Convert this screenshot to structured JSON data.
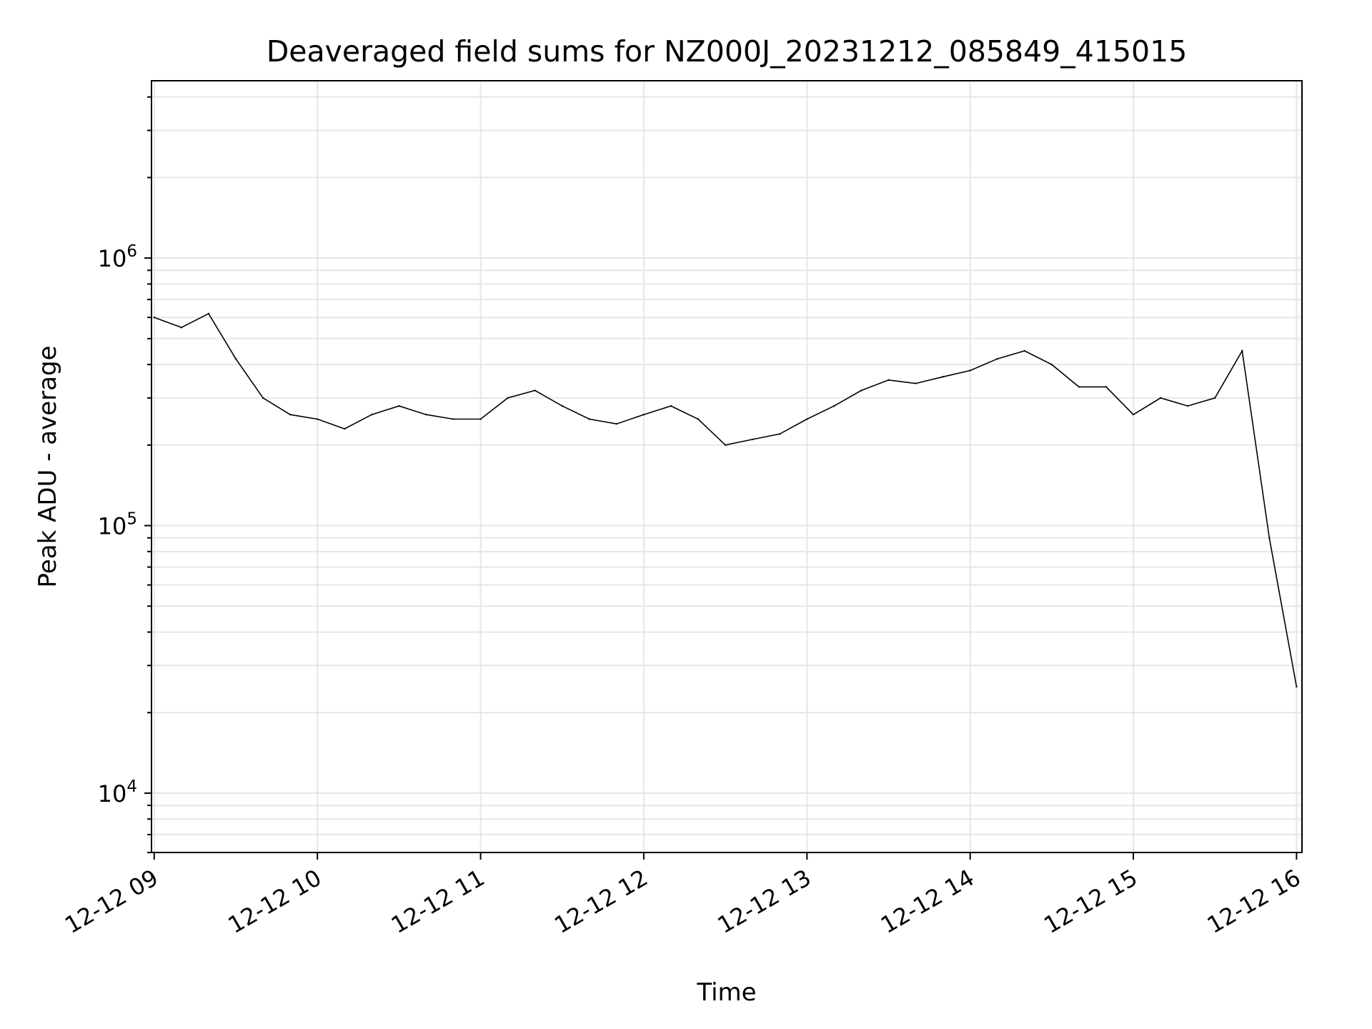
{
  "chart_data": {
    "type": "line",
    "title": "Deaveraged field sums for NZ000J_20231212_085849_415015",
    "xlabel": "Time",
    "ylabel": "Peak ADU - average",
    "yscale": "log",
    "ylim": [
      6000,
      4600000
    ],
    "xlim": [
      "2023-12-12 08:59",
      "2023-12-12 16:02"
    ],
    "x_ticks": [
      {
        "t": "2023-12-12 09:00",
        "label": "12-12 09"
      },
      {
        "t": "2023-12-12 10:00",
        "label": "12-12 10"
      },
      {
        "t": "2023-12-12 11:00",
        "label": "12-12 11"
      },
      {
        "t": "2023-12-12 12:00",
        "label": "12-12 12"
      },
      {
        "t": "2023-12-12 13:00",
        "label": "12-12 13"
      },
      {
        "t": "2023-12-12 14:00",
        "label": "12-12 14"
      },
      {
        "t": "2023-12-12 15:00",
        "label": "12-12 15"
      },
      {
        "t": "2023-12-12 16:00",
        "label": "12-12 16"
      }
    ],
    "y_ticks": [
      {
        "value": 10000,
        "base": "10",
        "exp": "4"
      },
      {
        "value": 100000,
        "base": "10",
        "exp": "5"
      },
      {
        "value": 1000000,
        "base": "10",
        "exp": "6"
      }
    ],
    "grid": true,
    "line_color": "#000000",
    "grid_color": "#e6e6e6",
    "series": [
      {
        "x": [
          "2023-12-12 09:00",
          "2023-12-12 09:10",
          "2023-12-12 09:20",
          "2023-12-12 09:30",
          "2023-12-12 09:40",
          "2023-12-12 09:50",
          "2023-12-12 10:00",
          "2023-12-12 10:10",
          "2023-12-12 10:20",
          "2023-12-12 10:30",
          "2023-12-12 10:40",
          "2023-12-12 10:50",
          "2023-12-12 11:00",
          "2023-12-12 11:10",
          "2023-12-12 11:20",
          "2023-12-12 11:30",
          "2023-12-12 11:40",
          "2023-12-12 11:50",
          "2023-12-12 12:00",
          "2023-12-12 12:10",
          "2023-12-12 12:20",
          "2023-12-12 12:30",
          "2023-12-12 12:40",
          "2023-12-12 12:50",
          "2023-12-12 13:00",
          "2023-12-12 13:10",
          "2023-12-12 13:20",
          "2023-12-12 13:30",
          "2023-12-12 13:40",
          "2023-12-12 13:50",
          "2023-12-12 14:00",
          "2023-12-12 14:10",
          "2023-12-12 14:20",
          "2023-12-12 14:30",
          "2023-12-12 14:40",
          "2023-12-12 14:50",
          "2023-12-12 15:00",
          "2023-12-12 15:10",
          "2023-12-12 15:20",
          "2023-12-12 15:30",
          "2023-12-12 15:40",
          "2023-12-12 15:50",
          "2023-12-12 16:00"
        ],
        "y": [
          600000,
          550000,
          620000,
          420000,
          300000,
          260000,
          250000,
          230000,
          260000,
          280000,
          260000,
          250000,
          250000,
          300000,
          320000,
          280000,
          250000,
          240000,
          260000,
          280000,
          250000,
          200000,
          210000,
          220000,
          250000,
          280000,
          320000,
          350000,
          340000,
          360000,
          380000,
          420000,
          450000,
          400000,
          330000,
          330000,
          260000,
          300000,
          280000,
          300000,
          450000,
          90000,
          25000
        ]
      }
    ]
  }
}
